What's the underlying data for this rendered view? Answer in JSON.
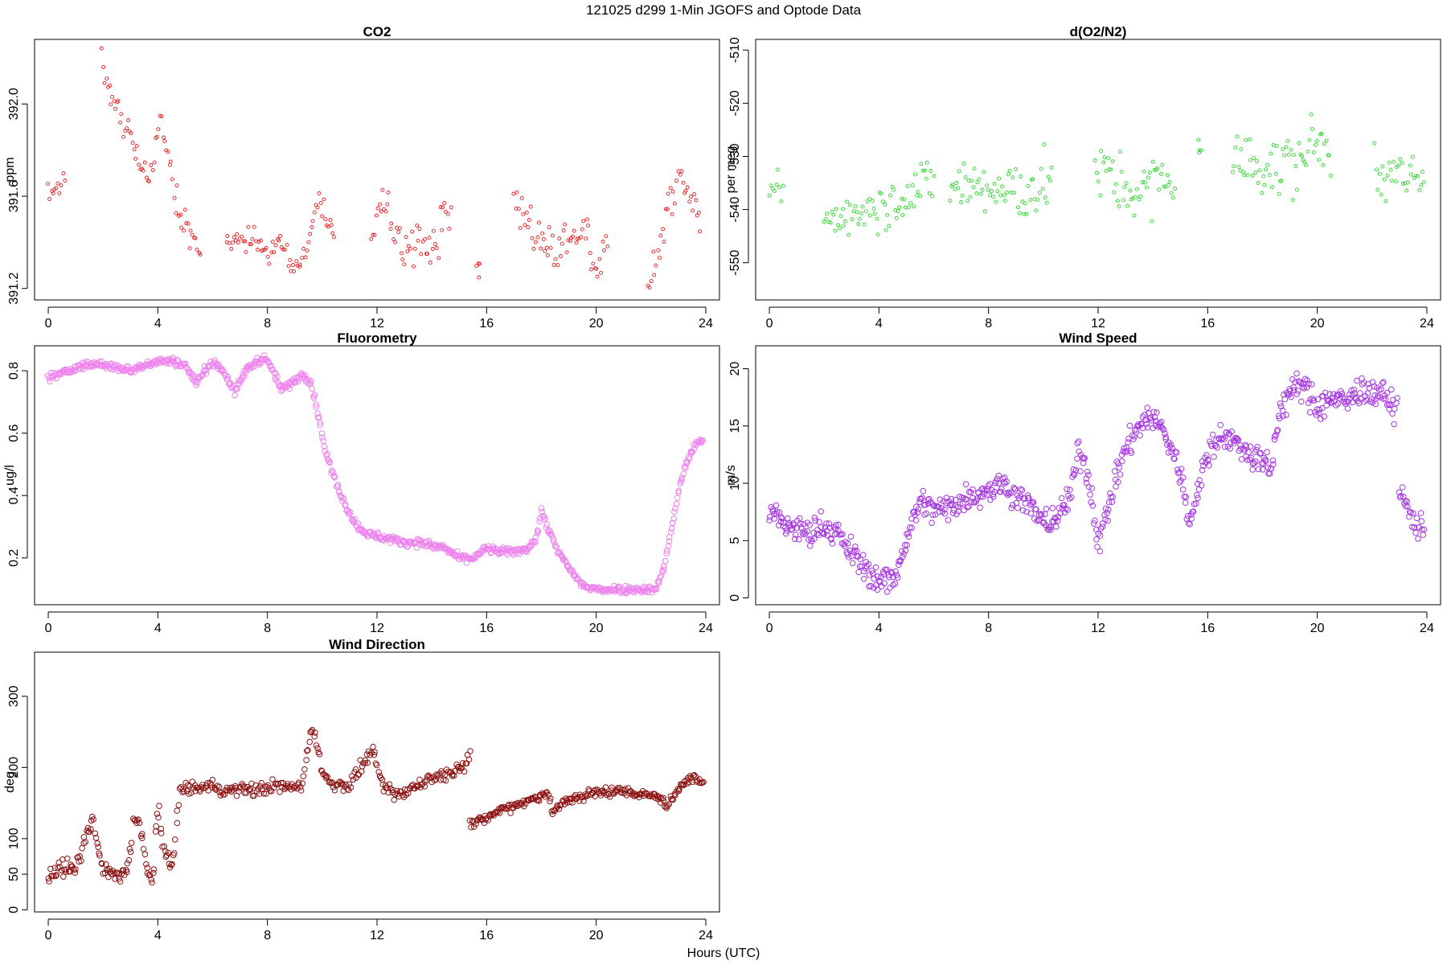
{
  "figure": {
    "title": "121025   d299   1-Min  JGOFS and Optode Data",
    "xlabel": "Hours (UTC)"
  },
  "chart_data": [
    {
      "id": "co2",
      "type": "scatter",
      "title": "CO2",
      "xlabel": "Hours (UTC)",
      "ylabel": "ppm",
      "color": "#e41a1c",
      "marker_size": "small",
      "xlim": [
        -0.5,
        24.5
      ],
      "ylim": [
        391.15,
        392.28
      ],
      "xticks": [
        0,
        4,
        8,
        12,
        16,
        20,
        24
      ],
      "yticks": [
        391.2,
        391.6,
        392.0
      ],
      "ytick_labels": [
        "391.2",
        "391.6",
        "392.0"
      ],
      "segments": [
        {
          "x": [
            0.0,
            0.15,
            0.3,
            0.45,
            0.6
          ],
          "y": [
            391.64,
            391.6,
            391.66,
            391.62,
            391.68
          ],
          "spread": 0.05
        },
        {
          "x": [
            1.95,
            2.3,
            2.7,
            3.0,
            3.3,
            3.6,
            3.85,
            4.1,
            4.4,
            4.6,
            4.85,
            5.1,
            5.35,
            5.55
          ],
          "y": [
            392.15,
            392.0,
            391.95,
            391.86,
            391.76,
            391.66,
            391.75,
            391.92,
            391.76,
            391.62,
            391.53,
            391.46,
            391.4,
            391.33
          ],
          "spread": 0.07
        },
        {
          "x": [
            6.5,
            7.0,
            7.5,
            8.0,
            8.5,
            8.9,
            9.1,
            9.35,
            9.6,
            9.85,
            10.1,
            10.45
          ],
          "y": [
            391.38,
            391.42,
            391.4,
            391.36,
            391.39,
            391.3,
            391.28,
            391.36,
            391.46,
            391.58,
            391.52,
            391.46
          ],
          "spread": 0.05
        },
        {
          "x": [
            11.8,
            12.2,
            12.5,
            12.8,
            13.1,
            13.4,
            13.7,
            14.0,
            14.3,
            14.7
          ],
          "y": [
            391.45,
            391.58,
            391.5,
            391.4,
            391.36,
            391.42,
            391.35,
            391.4,
            391.45,
            391.52
          ],
          "spread": 0.1
        },
        {
          "x": [
            15.7
          ],
          "y": [
            391.28
          ],
          "spread": 0.06
        },
        {
          "x": [
            17.0,
            17.5,
            18.0,
            18.5,
            19.0,
            19.5,
            20.0,
            20.4
          ],
          "y": [
            391.58,
            391.48,
            391.42,
            391.36,
            391.4,
            391.48,
            391.32,
            391.36
          ],
          "spread": 0.1
        },
        {
          "x": [
            21.9,
            22.2,
            22.6,
            23.0,
            23.4,
            23.8
          ],
          "y": [
            391.22,
            391.32,
            391.55,
            391.66,
            391.6,
            391.5
          ],
          "spread": 0.07
        }
      ]
    },
    {
      "id": "o2n2",
      "type": "scatter",
      "title": "d(O2/N2)",
      "xlabel": "Hours (UTC)",
      "ylabel": "per meg",
      "color": "#2ad62a",
      "marker_size": "small",
      "xlim": [
        -0.5,
        24.5
      ],
      "ylim": [
        -557,
        -508
      ],
      "xticks": [
        0,
        4,
        8,
        12,
        16,
        20,
        24
      ],
      "yticks": [
        -550,
        -540,
        -530,
        -520,
        -510
      ],
      "ytick_labels": [
        "-550",
        "-540",
        "-530",
        "-520",
        "-510"
      ],
      "segments": [
        {
          "x": [
            0.0,
            0.25,
            0.5
          ],
          "y": [
            -538,
            -536,
            -537
          ],
          "spread": 3.5
        },
        {
          "x": [
            2.0,
            2.6,
            3.2,
            3.8,
            4.4,
            5.0,
            5.5,
            6.0
          ],
          "y": [
            -542,
            -541,
            -540,
            -539,
            -539,
            -537,
            -536,
            -534
          ],
          "spread": 4.5
        },
        {
          "x": [
            6.6,
            7.2,
            7.8,
            8.4,
            9.0,
            9.6,
            10.3
          ],
          "y": [
            -536,
            -535,
            -536,
            -537,
            -537,
            -536,
            -534
          ],
          "spread": 6
        },
        {
          "x": [
            11.9,
            12.4,
            12.9,
            13.4,
            13.9,
            14.4,
            14.8
          ],
          "y": [
            -534,
            -533,
            -536,
            -537,
            -536,
            -534,
            -535
          ],
          "spread": 5.5
        },
        {
          "x": [
            15.7
          ],
          "y": [
            -528
          ],
          "spread": 2.5
        },
        {
          "x": [
            16.9,
            17.5,
            18.1,
            18.7,
            19.3,
            19.9,
            20.5
          ],
          "y": [
            -532,
            -531,
            -532,
            -533,
            -530,
            -528,
            -529
          ],
          "spread": 6
        },
        {
          "x": [
            22.1,
            22.7,
            23.3,
            23.9
          ],
          "y": [
            -531,
            -534,
            -535,
            -536
          ],
          "spread": 5
        }
      ]
    },
    {
      "id": "fluorometry",
      "type": "scatter",
      "title": "Fluorometry",
      "xlabel": "Hours (UTC)",
      "ylabel": "ug/l",
      "color": "#ee82ee",
      "marker_size": "large",
      "xlim": [
        -0.5,
        24.5
      ],
      "ylim": [
        0.05,
        0.88
      ],
      "xticks": [
        0,
        4,
        8,
        12,
        16,
        20,
        24
      ],
      "yticks": [
        0.2,
        0.4,
        0.6,
        0.8
      ],
      "ytick_labels": [
        "0.2",
        "0.4",
        "0.6",
        "0.8"
      ],
      "segments": [
        {
          "x": [
            0.0,
            0.5,
            1.0,
            1.5,
            2.0,
            2.5,
            3.0,
            3.5,
            4.0,
            4.5,
            5.0,
            5.4,
            5.7,
            6.0,
            6.4,
            6.8,
            7.2,
            7.6,
            7.9,
            8.2,
            8.5,
            8.9,
            9.3,
            9.6,
            9.85,
            10.1,
            10.3,
            10.6,
            10.9,
            11.2,
            11.6,
            12.0,
            12.5,
            13.0,
            13.5,
            14.0,
            14.5,
            15.0,
            15.5,
            16.0,
            16.5,
            17.0,
            17.5,
            17.8,
            18.0,
            18.3,
            18.6,
            19.0,
            19.4,
            19.8,
            20.2,
            20.8,
            21.3,
            21.8,
            22.2,
            22.5,
            22.8,
            23.1,
            23.4,
            23.7,
            23.9
          ],
          "y": [
            0.78,
            0.79,
            0.81,
            0.82,
            0.82,
            0.81,
            0.8,
            0.82,
            0.83,
            0.83,
            0.82,
            0.76,
            0.8,
            0.83,
            0.8,
            0.73,
            0.8,
            0.83,
            0.84,
            0.8,
            0.74,
            0.76,
            0.79,
            0.76,
            0.66,
            0.55,
            0.49,
            0.42,
            0.36,
            0.31,
            0.28,
            0.27,
            0.26,
            0.25,
            0.25,
            0.24,
            0.23,
            0.2,
            0.2,
            0.23,
            0.22,
            0.22,
            0.23,
            0.26,
            0.35,
            0.28,
            0.22,
            0.17,
            0.12,
            0.1,
            0.1,
            0.1,
            0.1,
            0.1,
            0.1,
            0.18,
            0.32,
            0.45,
            0.53,
            0.57,
            0.58
          ],
          "spread": 0.012,
          "density": 32
        }
      ]
    },
    {
      "id": "windspeed",
      "type": "scatter",
      "title": "Wind Speed",
      "xlabel": "Hours (UTC)",
      "ylabel": "m/s",
      "color": "#a435e0",
      "marker_size": "large",
      "xlim": [
        -0.5,
        24.5
      ],
      "ylim": [
        -0.6,
        22
      ],
      "xticks": [
        0,
        4,
        8,
        12,
        16,
        20,
        24
      ],
      "yticks": [
        0,
        5,
        10,
        15,
        20
      ],
      "ytick_labels": [
        "0",
        "5",
        "10",
        "15",
        "20"
      ],
      "segments": [
        {
          "x": [
            0.0,
            0.5,
            1.0,
            1.5,
            2.0,
            2.5,
            3.0,
            3.5,
            4.0,
            4.5,
            5.0,
            5.5,
            6.0,
            6.5,
            7.0,
            7.5,
            8.0,
            8.5,
            9.0,
            9.5,
            10.0,
            10.5,
            11.0,
            11.3,
            11.6,
            12.0,
            12.3,
            12.6,
            13.0,
            13.5,
            14.0,
            14.5,
            15.0,
            15.3,
            15.6,
            16.0,
            16.5,
            17.0,
            17.5,
            18.0,
            18.3,
            18.6,
            19.0,
            19.5,
            20.0,
            20.5,
            21.0,
            21.5,
            22.0,
            22.5,
            22.9
          ],
          "y": [
            7.5,
            6.5,
            6.0,
            5.5,
            6.5,
            5.5,
            4.0,
            2.5,
            1.5,
            1.5,
            5.0,
            8.5,
            7.5,
            8.0,
            8.5,
            9.0,
            9.5,
            10.0,
            9.0,
            8.0,
            6.5,
            7.0,
            9.0,
            13.0,
            11.0,
            5.0,
            7.0,
            10.0,
            13.0,
            15.0,
            16.0,
            14.0,
            11.0,
            6.5,
            9.0,
            12.5,
            14.5,
            13.5,
            12.5,
            12.0,
            11.0,
            16.0,
            18.0,
            18.5,
            16.5,
            17.5,
            17.0,
            18.0,
            18.0,
            17.5,
            16.5
          ],
          "spread": 1.2,
          "density": 30
        },
        {
          "x": [
            23.0,
            23.3,
            23.6,
            23.9
          ],
          "y": [
            9.5,
            7.5,
            6.5,
            6.0
          ],
          "spread": 1.2,
          "density": 30
        }
      ]
    },
    {
      "id": "winddir",
      "type": "scatter",
      "title": "Wind Direction",
      "xlabel": "Hours (UTC)",
      "ylabel": "deg",
      "color": "#8b1010",
      "marker_size": "large",
      "xlim": [
        -0.5,
        24.5
      ],
      "ylim": [
        -3,
        362
      ],
      "xticks": [
        0,
        4,
        8,
        12,
        16,
        20,
        24
      ],
      "yticks": [
        0,
        50,
        100,
        200,
        300
      ],
      "ytick_labels": [
        "0",
        "50",
        "100",
        "200",
        "300"
      ],
      "segments": [
        {
          "x": [
            0.0,
            0.5,
            1.0,
            1.3,
            1.6,
            1.8,
            2.0,
            2.3,
            2.6,
            2.9,
            3.1,
            3.3,
            3.6,
            3.8,
            4.0,
            4.2,
            4.5,
            4.8
          ],
          "y": [
            50,
            60,
            55,
            95,
            125,
            90,
            55,
            50,
            45,
            60,
            120,
            130,
            55,
            35,
            150,
            80,
            60,
            160
          ],
          "spread": 12,
          "density": 26
        },
        {
          "x": [
            4.8,
            5.5,
            6.0,
            6.5,
            7.0,
            7.5,
            8.0,
            8.5,
            9.0,
            9.3,
            9.6,
            9.8,
            10.0,
            10.3,
            10.6,
            11.0,
            11.3,
            11.6,
            11.9,
            12.1,
            12.4,
            12.8,
            13.2,
            13.6,
            14.0,
            14.4,
            14.8,
            15.2,
            15.4
          ],
          "y": [
            170,
            170,
            175,
            165,
            170,
            168,
            172,
            175,
            170,
            180,
            255,
            240,
            190,
            180,
            175,
            175,
            195,
            210,
            225,
            180,
            165,
            160,
            170,
            178,
            185,
            190,
            195,
            205,
            225
          ],
          "spread": 9,
          "density": 24
        },
        {
          "x": [
            15.4,
            15.8,
            16.3,
            16.8,
            17.3,
            17.8,
            18.2,
            18.4,
            18.8,
            19.3,
            19.8,
            20.3,
            20.8,
            21.3,
            21.8,
            22.3,
            22.6,
            22.9,
            23.2,
            23.5,
            23.9
          ],
          "y": [
            120,
            125,
            135,
            145,
            150,
            158,
            165,
            138,
            150,
            158,
            163,
            166,
            167,
            165,
            163,
            158,
            145,
            162,
            180,
            188,
            175
          ],
          "spread": 7,
          "density": 26
        }
      ]
    }
  ]
}
